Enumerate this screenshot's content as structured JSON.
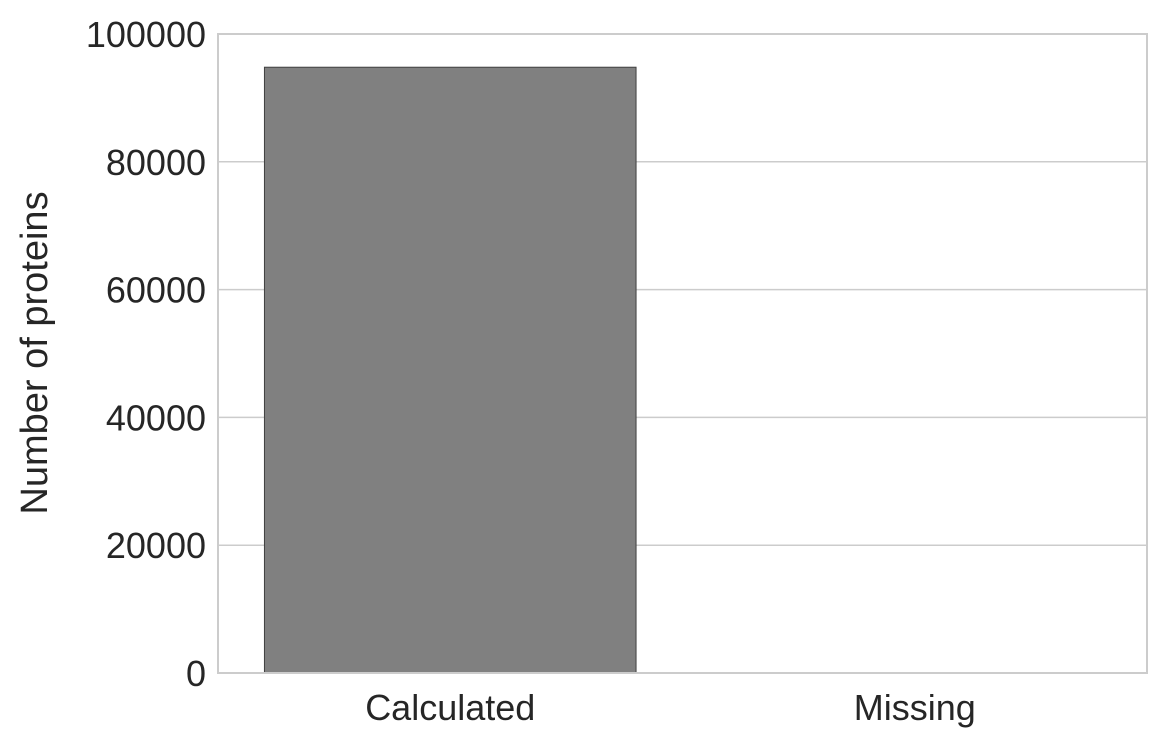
{
  "chart_data": {
    "type": "bar",
    "categories": [
      "Calculated",
      "Missing"
    ],
    "values": [
      94800,
      0
    ],
    "title": "",
    "xlabel": "",
    "ylabel": "Number of proteins",
    "ylim": [
      0,
      100000
    ],
    "yticks": [
      0,
      20000,
      40000,
      60000,
      80000,
      100000
    ],
    "grid": true,
    "bar_color": "#808080",
    "bar_edge_color": "#404040",
    "grid_color": "#cccccc",
    "text_color": "#262626"
  }
}
